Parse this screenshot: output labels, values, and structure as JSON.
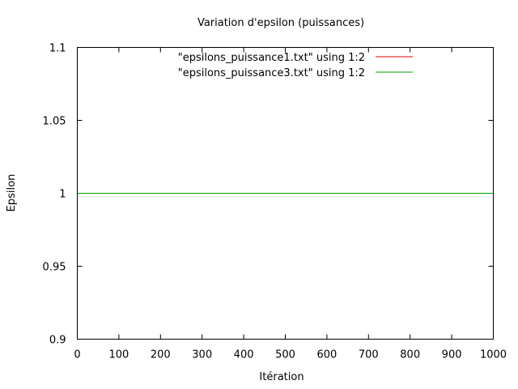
{
  "chart_data": {
    "type": "line",
    "title": "Variation d'epsilon (puissances)",
    "xlabel": "Itération",
    "ylabel": "Epsilon",
    "xlim": [
      0,
      1000
    ],
    "ylim": [
      0.9,
      1.1
    ],
    "x_ticks": [
      0,
      100,
      200,
      300,
      400,
      500,
      600,
      700,
      800,
      900,
      1000
    ],
    "x_tick_labels": [
      "0",
      "100",
      "200",
      "300",
      "400",
      "500",
      "600",
      "700",
      "800",
      "900",
      "1000"
    ],
    "y_ticks": [
      0.9,
      0.95,
      1.0,
      1.05,
      1.1
    ],
    "y_tick_labels": [
      "0.9",
      "0.95",
      "1",
      "1.05",
      "1.1"
    ],
    "grid": false,
    "legend_position": "top-right",
    "series": [
      {
        "name": "\"epsilons_puissance1.txt\" using 1:2",
        "color": "#e00000",
        "x": [
          0,
          1000
        ],
        "y": [
          1.0,
          1.0
        ]
      },
      {
        "name": "\"epsilons_puissance3.txt\" using 1:2",
        "color": "#00a000",
        "x": [
          0,
          1000
        ],
        "y": [
          1.0,
          1.0
        ]
      }
    ]
  }
}
